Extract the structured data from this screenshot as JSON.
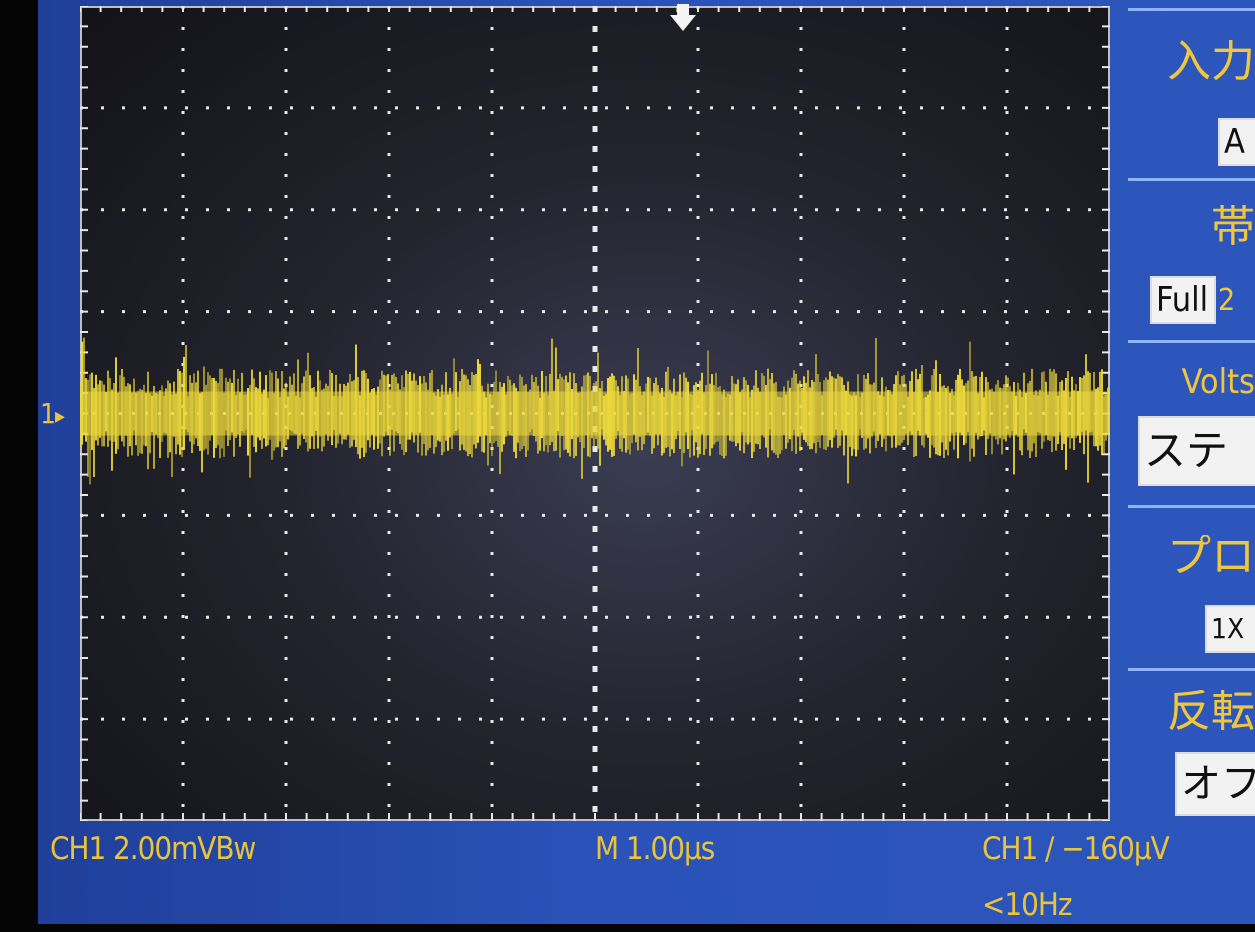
{
  "status_bar": {
    "ch1_scale": "CH1  2.00mVBw",
    "timebase": "M 1.00µs",
    "trigger": "CH1  ∕  −160µV",
    "trigger_freq": "<10Hz"
  },
  "graticule": {
    "channel_marker": "1",
    "trigger_position_marker": "down-arrow-icon"
  },
  "menu": {
    "input": {
      "title": "入力",
      "value": "A"
    },
    "bandwidth": {
      "title": "帯",
      "value": "Full",
      "value_extra": "2"
    },
    "volts": {
      "title": "Volts",
      "value": "ステ"
    },
    "probe": {
      "title": "プロ",
      "value": "1X"
    },
    "invert": {
      "title": "反転",
      "value": "オフ"
    }
  },
  "colors": {
    "trace": "#ecd83a",
    "grid": "#e8e8e8",
    "screen_bg": "#2a52b8",
    "text": "#e9c43a"
  },
  "chart_data": {
    "type": "line",
    "title": "",
    "xlabel": "",
    "ylabel": "",
    "x_divisions": 10,
    "y_divisions": 8,
    "x_per_div": "1.00µs",
    "y_per_div": "2.00mV",
    "series": [
      {
        "values_mV_range": [
          -1.6,
          1.6
        ],
        "offset_div": 0
      }
    ]
  }
}
